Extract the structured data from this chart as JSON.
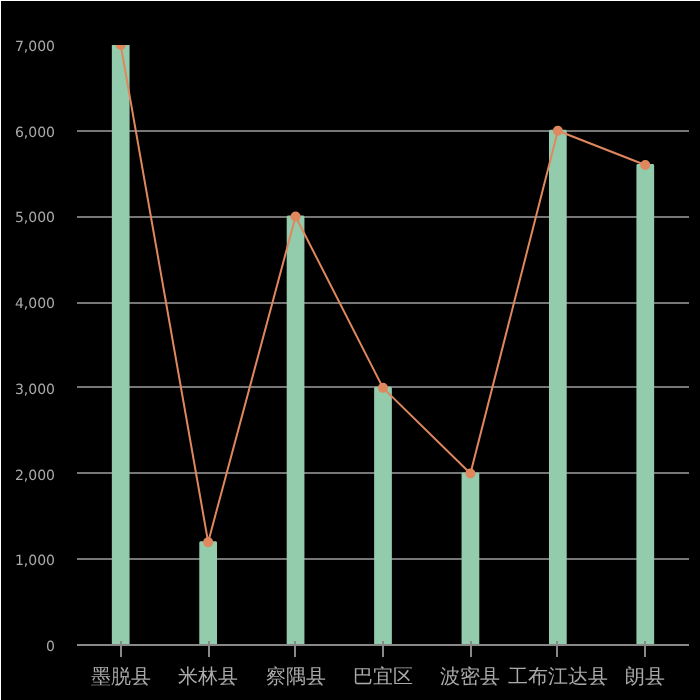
{
  "chart_data": {
    "type": "bar",
    "categories": [
      "墨脱县",
      "米林县",
      "察隅县",
      "巴宜区",
      "波密县",
      "工布江达县",
      "朗县"
    ],
    "series": [
      {
        "color": "#93cbad",
        "values": [
          7000,
          1200,
          5000,
          3000,
          2000,
          6000,
          5600
        ]
      },
      {
        "type": "line",
        "marker": "circle",
        "color": "#e0875e",
        "values": [
          7000,
          1200,
          5000,
          3000,
          2000,
          6000,
          5600
        ]
      }
    ],
    "ylim": [
      0,
      7000
    ],
    "yticks": [
      {
        "value": 0,
        "label": "0"
      },
      {
        "value": 1000,
        "label": "1,000"
      },
      {
        "value": 2000,
        "label": "2,000"
      },
      {
        "value": 3000,
        "label": "3,000"
      },
      {
        "value": 4000,
        "label": "4,000"
      },
      {
        "value": 5000,
        "label": "5,000"
      },
      {
        "value": 6000,
        "label": "6,000"
      },
      {
        "value": 7000,
        "label": "7,000"
      }
    ],
    "grid": "y"
  }
}
